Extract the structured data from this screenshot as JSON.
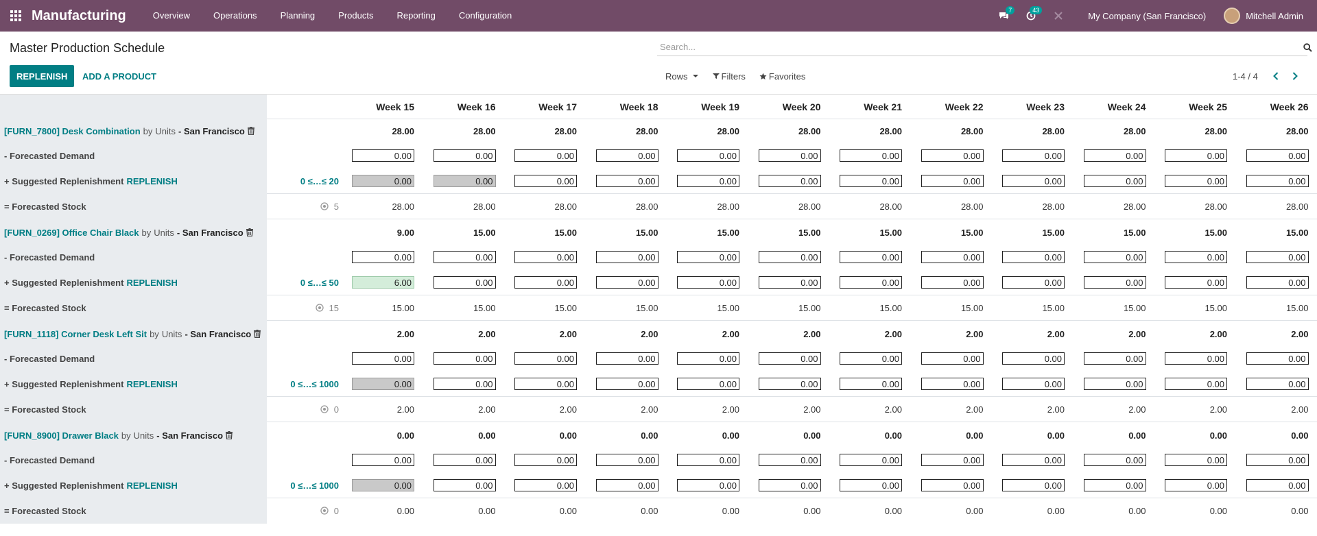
{
  "nav": {
    "app_name": "Manufacturing",
    "menu": [
      "Overview",
      "Operations",
      "Planning",
      "Products",
      "Reporting",
      "Configuration"
    ],
    "messages_badge": "7",
    "activities_badge": "43",
    "company": "My Company (San Francisco)",
    "user": "Mitchell Admin"
  },
  "control_panel": {
    "title": "Master Production Schedule",
    "search_placeholder": "Search...",
    "replenish_label": "REPLENISH",
    "add_product_label": "ADD A PRODUCT",
    "rows_label": "Rows",
    "filters_label": "Filters",
    "favorites_label": "Favorites",
    "pager": "1-4 / 4"
  },
  "weeks": [
    "Week 15",
    "Week 16",
    "Week 17",
    "Week 18",
    "Week 19",
    "Week 20",
    "Week 21",
    "Week 22",
    "Week 23",
    "Week 24",
    "Week 25",
    "Week 26"
  ],
  "row_labels": {
    "by": "by",
    "demand": "- Forecasted Demand",
    "replenishment": "+ Suggested Replenishment",
    "replenish_link": "REPLENISH",
    "stock": "= Forecasted Stock"
  },
  "products": [
    {
      "code_name": "[FURN_7800] Desk Combination",
      "uom": "Units",
      "warehouse": "- San Francisco",
      "range": "0 ≤…≤ 20",
      "initial_stock": "5",
      "header_values": [
        "28.00",
        "28.00",
        "28.00",
        "28.00",
        "28.00",
        "28.00",
        "28.00",
        "28.00",
        "28.00",
        "28.00",
        "28.00",
        "28.00"
      ],
      "demand": [
        "0.00",
        "0.00",
        "0.00",
        "0.00",
        "0.00",
        "0.00",
        "0.00",
        "0.00",
        "0.00",
        "0.00",
        "0.00",
        "0.00"
      ],
      "replenishment": [
        "0.00",
        "0.00",
        "0.00",
        "0.00",
        "0.00",
        "0.00",
        "0.00",
        "0.00",
        "0.00",
        "0.00",
        "0.00",
        "0.00"
      ],
      "replenishment_state": [
        "grey",
        "grey",
        "",
        "",
        "",
        "",
        "",
        "",
        "",
        "",
        "",
        ""
      ],
      "stock": [
        "28.00",
        "28.00",
        "28.00",
        "28.00",
        "28.00",
        "28.00",
        "28.00",
        "28.00",
        "28.00",
        "28.00",
        "28.00",
        "28.00"
      ]
    },
    {
      "code_name": "[FURN_0269] Office Chair Black",
      "uom": "Units",
      "warehouse": "- San Francisco",
      "range": "0 ≤…≤ 50",
      "initial_stock": "15",
      "header_values": [
        "9.00",
        "15.00",
        "15.00",
        "15.00",
        "15.00",
        "15.00",
        "15.00",
        "15.00",
        "15.00",
        "15.00",
        "15.00",
        "15.00"
      ],
      "demand": [
        "0.00",
        "0.00",
        "0.00",
        "0.00",
        "0.00",
        "0.00",
        "0.00",
        "0.00",
        "0.00",
        "0.00",
        "0.00",
        "0.00"
      ],
      "replenishment": [
        "6.00",
        "0.00",
        "0.00",
        "0.00",
        "0.00",
        "0.00",
        "0.00",
        "0.00",
        "0.00",
        "0.00",
        "0.00",
        "0.00"
      ],
      "replenishment_state": [
        "green",
        "",
        "",
        "",
        "",
        "",
        "",
        "",
        "",
        "",
        "",
        ""
      ],
      "stock": [
        "15.00",
        "15.00",
        "15.00",
        "15.00",
        "15.00",
        "15.00",
        "15.00",
        "15.00",
        "15.00",
        "15.00",
        "15.00",
        "15.00"
      ]
    },
    {
      "code_name": "[FURN_1118] Corner Desk Left Sit",
      "uom": "Units",
      "warehouse": "- San Francisco",
      "range": "0 ≤…≤ 1000",
      "initial_stock": "0",
      "header_values": [
        "2.00",
        "2.00",
        "2.00",
        "2.00",
        "2.00",
        "2.00",
        "2.00",
        "2.00",
        "2.00",
        "2.00",
        "2.00",
        "2.00"
      ],
      "demand": [
        "0.00",
        "0.00",
        "0.00",
        "0.00",
        "0.00",
        "0.00",
        "0.00",
        "0.00",
        "0.00",
        "0.00",
        "0.00",
        "0.00"
      ],
      "replenishment": [
        "0.00",
        "0.00",
        "0.00",
        "0.00",
        "0.00",
        "0.00",
        "0.00",
        "0.00",
        "0.00",
        "0.00",
        "0.00",
        "0.00"
      ],
      "replenishment_state": [
        "grey",
        "",
        "",
        "",
        "",
        "",
        "",
        "",
        "",
        "",
        "",
        ""
      ],
      "stock": [
        "2.00",
        "2.00",
        "2.00",
        "2.00",
        "2.00",
        "2.00",
        "2.00",
        "2.00",
        "2.00",
        "2.00",
        "2.00",
        "2.00"
      ]
    },
    {
      "code_name": "[FURN_8900] Drawer Black",
      "uom": "Units",
      "warehouse": "- San Francisco",
      "range": "0 ≤…≤ 1000",
      "initial_stock": "0",
      "header_values": [
        "0.00",
        "0.00",
        "0.00",
        "0.00",
        "0.00",
        "0.00",
        "0.00",
        "0.00",
        "0.00",
        "0.00",
        "0.00",
        "0.00"
      ],
      "demand": [
        "0.00",
        "0.00",
        "0.00",
        "0.00",
        "0.00",
        "0.00",
        "0.00",
        "0.00",
        "0.00",
        "0.00",
        "0.00",
        "0.00"
      ],
      "replenishment": [
        "0.00",
        "0.00",
        "0.00",
        "0.00",
        "0.00",
        "0.00",
        "0.00",
        "0.00",
        "0.00",
        "0.00",
        "0.00",
        "0.00"
      ],
      "replenishment_state": [
        "grey",
        "",
        "",
        "",
        "",
        "",
        "",
        "",
        "",
        "",
        "",
        ""
      ],
      "stock": [
        "0.00",
        "0.00",
        "0.00",
        "0.00",
        "0.00",
        "0.00",
        "0.00",
        "0.00",
        "0.00",
        "0.00",
        "0.00",
        "0.00"
      ]
    }
  ]
}
